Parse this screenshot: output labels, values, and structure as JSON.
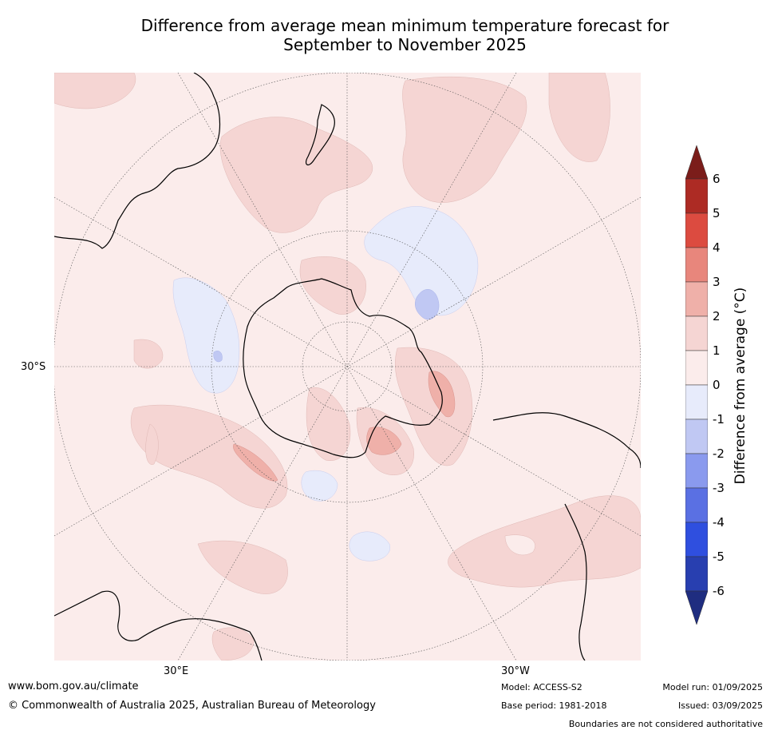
{
  "title_line1": "Difference from average mean minimum temperature forecast for",
  "title_line2": "September to November 2025",
  "map": {
    "lat_label": "30°S",
    "lon_label_east": "30°E",
    "lon_label_west": "30°W"
  },
  "colorbar": {
    "label": "Difference from average (°C)",
    "ticks": [
      "6",
      "5",
      "4",
      "3",
      "2",
      "1",
      "0",
      "-1",
      "-2",
      "-3",
      "-4",
      "-5",
      "-6"
    ],
    "colors": {
      "gt6": "#7b1d1a",
      "5to6": "#ad2b24",
      "4to5": "#dc4b40",
      "3to4": "#e8867c",
      "2to3": "#efb0a9",
      "1to2": "#f5d5d3",
      "0to1": "#fbeceb",
      "m1to0": "#e7ebfb",
      "m2tom1": "#c0c8f3",
      "m3tom2": "#8a9aee",
      "m4tom3": "#5a70e3",
      "m5tom4": "#2f4fdf",
      "m6tom5": "#283fb0",
      "ltm6": "#1f2d80"
    }
  },
  "footer": {
    "website": "www.bom.gov.au/climate",
    "copyright": "© Commonwealth of Australia 2025, Australian Bureau of Meteorology",
    "model": "Model: ACCESS-S2",
    "base_period": "Base period: 1981-2018",
    "model_run": "Model run: 01/09/2025",
    "issued": "Issued: 03/09/2025",
    "disclaimer": "Boundaries are not considered authoritative"
  }
}
